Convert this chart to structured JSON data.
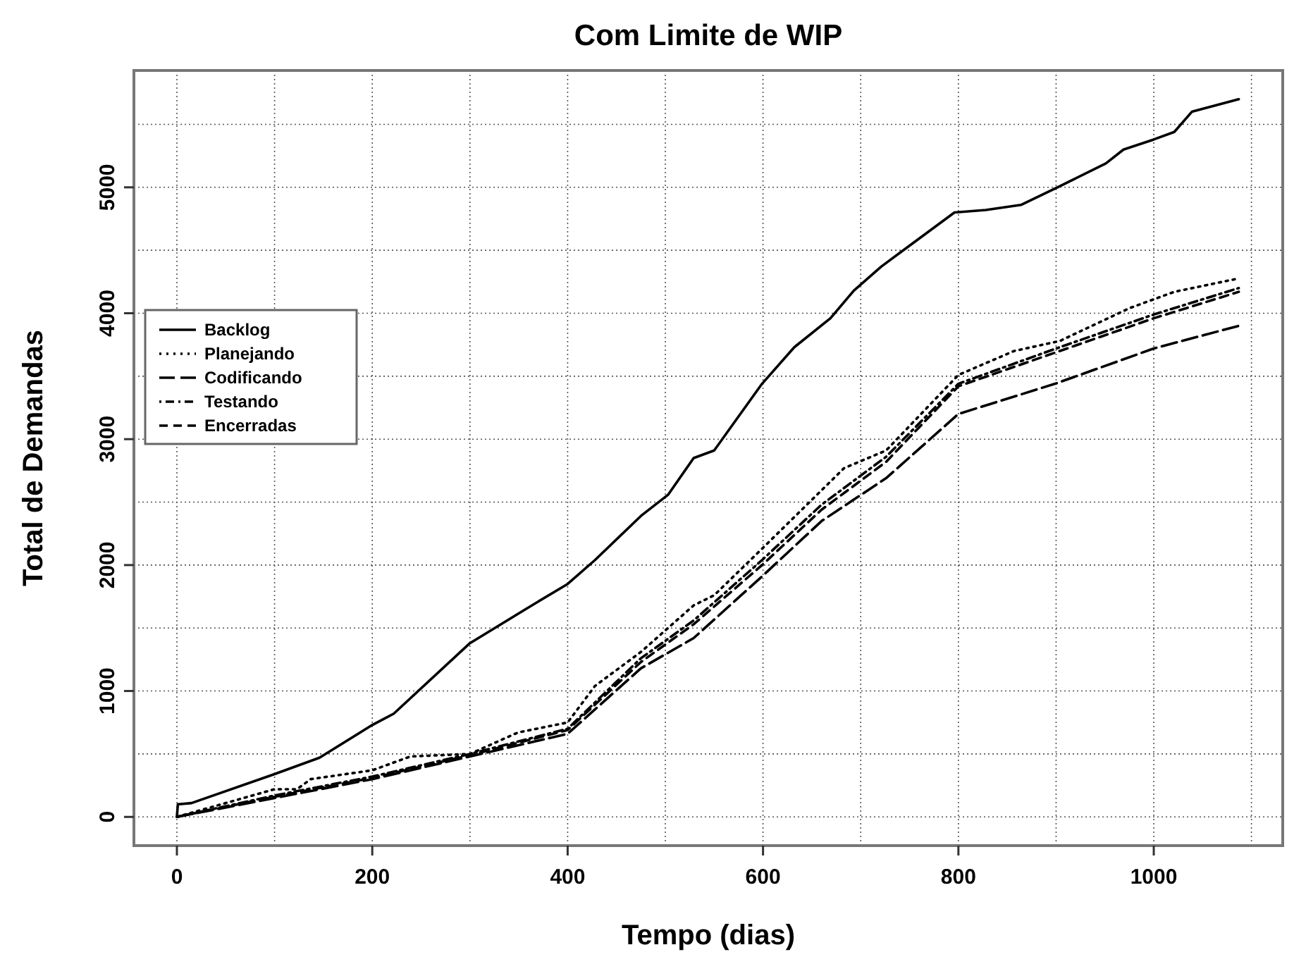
{
  "chart_data": {
    "type": "line",
    "title": "Com Limite de WIP",
    "xlabel": "Tempo (dias)",
    "ylabel": "Total de Demandas",
    "xlim": [
      -44,
      1132
    ],
    "ylim": [
      -228,
      5928
    ],
    "xticks": [
      0,
      {
        "value": 100,
        "label": null
      },
      200,
      {
        "value": 300,
        "label": null
      },
      400,
      {
        "value": 500,
        "label": null
      },
      600,
      {
        "value": 700,
        "label": null
      },
      800,
      {
        "value": 900,
        "label": null
      },
      1000,
      {
        "value": 1100,
        "label": null
      }
    ],
    "yticks": [
      0,
      {
        "value": 500,
        "label": null
      },
      1000,
      {
        "value": 1500,
        "label": null
      },
      2000,
      {
        "value": 2500,
        "label": null
      },
      3000,
      {
        "value": 3500,
        "label": null
      },
      4000,
      {
        "value": 4500,
        "label": null
      },
      5000,
      {
        "value": 5500,
        "label": null
      }
    ],
    "grid": true,
    "legend": "left",
    "series": [
      {
        "name": "Backlog",
        "color": "#000000",
        "line_style": "solid",
        "x": [
          0,
          1,
          15,
          100,
          146,
          200,
          222,
          300,
          357,
          400,
          428,
          475,
          503,
          529,
          550,
          599,
          632,
          669,
          693,
          721,
          754,
          796,
          828,
          864,
          904,
          951,
          969,
          1000,
          1021,
          1039,
          1087
        ],
        "values": [
          0,
          100,
          110,
          340,
          470,
          730,
          820,
          1380,
          1650,
          1850,
          2040,
          2390,
          2560,
          2850,
          2910,
          3440,
          3730,
          3960,
          4180,
          4370,
          4560,
          4800,
          4820,
          4860,
          5010,
          5190,
          5300,
          5380,
          5440,
          5600,
          5700
        ]
      },
      {
        "name": "Planejando",
        "color": "#000000",
        "line_style": "dotted",
        "x": [
          0,
          100,
          123,
          137,
          200,
          239,
          300,
          349,
          400,
          428,
          475,
          529,
          550,
          599,
          683,
          726,
          800,
          857,
          904,
          975,
          1021,
          1083
        ],
        "values": [
          0,
          220,
          220,
          300,
          370,
          480,
          500,
          670,
          750,
          1040,
          1310,
          1680,
          1760,
          2130,
          2770,
          2910,
          3510,
          3700,
          3780,
          4040,
          4170,
          4270
        ]
      },
      {
        "name": "Codificando",
        "color": "#000000",
        "line_style": "longdash",
        "x": [
          0,
          100,
          200,
          300,
          400,
          475,
          529,
          599,
          660,
          726,
          800,
          899,
          1000,
          1087
        ],
        "values": [
          0,
          150,
          300,
          480,
          660,
          1180,
          1420,
          1910,
          2350,
          2690,
          3200,
          3440,
          3720,
          3900
        ]
      },
      {
        "name": "Testando",
        "color": "#000000",
        "line_style": "dotdash",
        "x": [
          0,
          100,
          200,
          300,
          400,
          475,
          529,
          599,
          660,
          726,
          800,
          900,
          1000,
          1087
        ],
        "values": [
          0,
          170,
          320,
          500,
          700,
          1260,
          1560,
          2040,
          2480,
          2860,
          3440,
          3720,
          3990,
          4200
        ]
      },
      {
        "name": "Encerradas",
        "color": "#000000",
        "line_style": "dashed",
        "x": [
          0,
          100,
          200,
          300,
          400,
          475,
          529,
          599,
          660,
          726,
          800,
          900,
          1000,
          1087
        ],
        "values": [
          0,
          160,
          310,
          490,
          690,
          1230,
          1530,
          2000,
          2440,
          2820,
          3420,
          3690,
          3960,
          4170
        ]
      }
    ]
  }
}
